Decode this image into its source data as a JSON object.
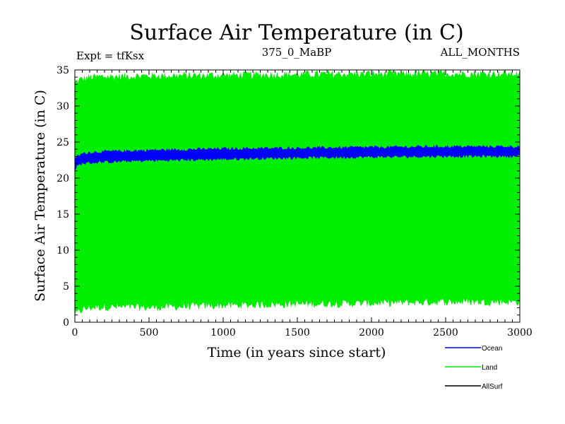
{
  "chart_data": {
    "type": "area",
    "title": "Surface Air Temperature (in C)",
    "subtitle_left": "Expt = tfKsx",
    "subtitle_center": "375_0_MaBP",
    "subtitle_right": "ALL_MONTHS",
    "xlabel": "Time (in years since start)",
    "ylabel": "Surface Air Temperature (in C)",
    "xlim": [
      0,
      3000
    ],
    "ylim": [
      0,
      35
    ],
    "xticks": [
      0,
      500,
      1000,
      1500,
      2000,
      2500,
      3000
    ],
    "yticks": [
      0,
      5,
      10,
      15,
      20,
      25,
      30,
      35
    ],
    "grid": false,
    "legend_position": "bottom-right",
    "series": [
      {
        "name": "Land",
        "color": "#00ee00",
        "x": [
          0,
          50,
          100,
          200,
          500,
          1000,
          1500,
          2000,
          2500,
          3000
        ],
        "lower": [
          1.0,
          1.7,
          2.0,
          2.1,
          2.0,
          2.3,
          2.5,
          2.6,
          2.8,
          2.8
        ],
        "upper": [
          33.3,
          33.8,
          34.0,
          34.1,
          34.2,
          34.3,
          34.4,
          34.5,
          34.5,
          34.5
        ]
      },
      {
        "name": "Ocean",
        "color": "#0000ff",
        "x": [
          0,
          20,
          50,
          100,
          200,
          500,
          1000,
          1500,
          2000,
          2500,
          3000
        ],
        "lower": [
          21.2,
          21.7,
          22.0,
          22.1,
          22.2,
          22.4,
          22.6,
          22.8,
          22.9,
          23.0,
          23.0
        ],
        "upper": [
          22.8,
          23.1,
          23.4,
          23.6,
          23.7,
          23.9,
          24.1,
          24.2,
          24.3,
          24.4,
          24.4
        ]
      },
      {
        "name": "AllSurf",
        "color": "#000000",
        "x": [],
        "values": []
      }
    ]
  }
}
